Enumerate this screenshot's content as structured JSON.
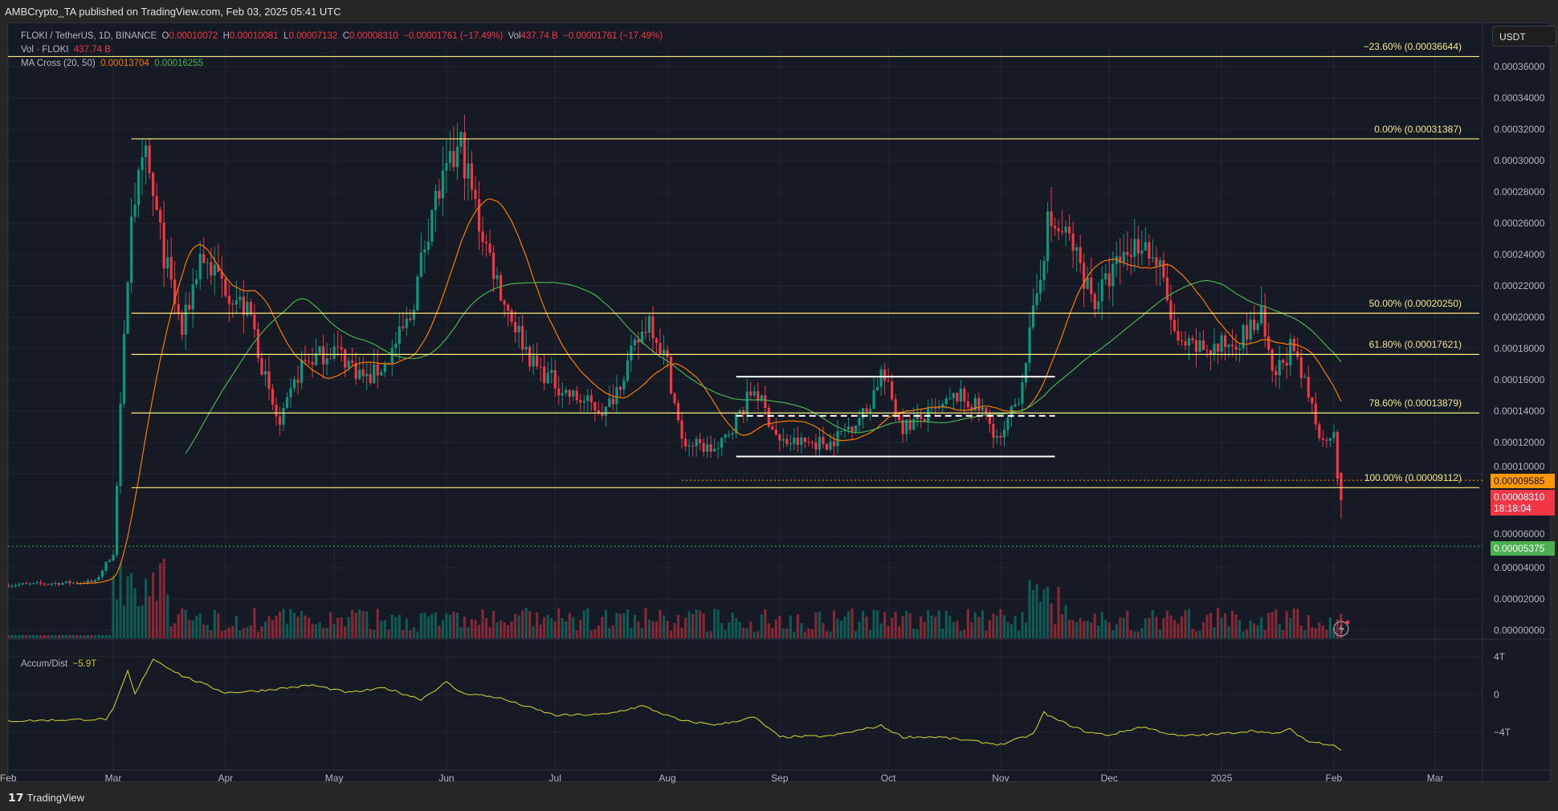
{
  "topbar": {
    "text": "AMBCrypto_TA published on TradingView.com, Feb 03, 2025 05:41 UTC"
  },
  "legend": {
    "symbol": "FLOKI / TetherUS, 1D, BINANCE",
    "o_label": "O",
    "o": "0.00010072",
    "h_label": "H",
    "h": "0.00010081",
    "l_label": "L",
    "l": "0.00007132",
    "c_label": "C",
    "c": "0.00008310",
    "change": "−0.00001761 (−17.49%)",
    "vol_label": "Vol",
    "vol": "437.74 B",
    "vol_change": "−0.00001761 (−17.49%)",
    "vol_study": "Vol · FLOKI",
    "vol_study_value": "437.74 B",
    "ma_study": "MA Cross (20, 50)",
    "ma20": "0.00013704",
    "ma50": "0.00016255",
    "ad_study": "Accum/Dist",
    "ad_value": "−5.9T"
  },
  "currency": "USDT",
  "fib_levels": [
    {
      "label": "−23.60% (0.00036644)",
      "price": 0.00036644
    },
    {
      "label": "0.00% (0.00031387)",
      "price": 0.00031387
    },
    {
      "label": "50.00% (0.00020250)",
      "price": 0.0002025
    },
    {
      "label": "61.80% (0.00017621)",
      "price": 0.00017621
    },
    {
      "label": "78.60% (0.00013879)",
      "price": 0.00013879
    },
    {
      "label": "100.00% (0.00009112)",
      "price": 9.112e-05
    }
  ],
  "price_axis": [
    "0.00036000",
    "0.00034000",
    "0.00032000",
    "0.00030000",
    "0.00028000",
    "0.00026000",
    "0.00024000",
    "0.00022000",
    "0.00020000",
    "0.00018000",
    "0.00016000",
    "0.00014000",
    "0.00012000",
    "0.00010000",
    "0.00006000",
    "0.00004000",
    "0.00002000",
    "0.00000000"
  ],
  "price_tags": {
    "orange": "0.00009585",
    "last": "0.00008310",
    "countdown": "18:18:04",
    "green": "0.00005375"
  },
  "ad_axis": [
    "4T",
    "0",
    "−4T"
  ],
  "time_axis": [
    {
      "label": "Feb",
      "date": "2024-02-01"
    },
    {
      "label": "Mar",
      "date": "2024-03-01"
    },
    {
      "label": "Apr",
      "date": "2024-04-01"
    },
    {
      "label": "May",
      "date": "2024-05-01"
    },
    {
      "label": "Jun",
      "date": "2024-06-01"
    },
    {
      "label": "Jul",
      "date": "2024-07-01"
    },
    {
      "label": "Aug",
      "date": "2024-08-01"
    },
    {
      "label": "Sep",
      "date": "2024-09-01"
    },
    {
      "label": "Oct",
      "date": "2024-10-01"
    },
    {
      "label": "Nov",
      "date": "2024-11-01"
    },
    {
      "label": "Dec",
      "date": "2024-12-01"
    },
    {
      "label": "2025",
      "date": "2025-01-01"
    },
    {
      "label": "Feb",
      "date": "2025-02-01"
    },
    {
      "label": "Mar",
      "date": "2025-03-01"
    }
  ],
  "footer": {
    "brand": "TradingView"
  },
  "colors": {
    "up": "#089981",
    "down": "#f23645",
    "ma20": "#f57c00",
    "ma50": "#4caf50",
    "fib": "#ffeb80",
    "ad": "#c8c832"
  },
  "chart_data": {
    "type": "candlestick",
    "title": "FLOKI / TetherUS, 1D, BINANCE",
    "close_keypoints": [
      [
        "2024-02-01",
        2.9e-05
      ],
      [
        "2024-02-25",
        3.1e-05
      ],
      [
        "2024-03-01",
        5e-05
      ],
      [
        "2024-03-03",
        0.00014
      ],
      [
        "2024-03-06",
        0.00027
      ],
      [
        "2024-03-10",
        0.0003
      ],
      [
        "2024-03-15",
        0.00024
      ],
      [
        "2024-03-20",
        0.00019
      ],
      [
        "2024-03-25",
        0.00024
      ],
      [
        "2024-04-01",
        0.00022
      ],
      [
        "2024-04-08",
        0.0002
      ],
      [
        "2024-04-13",
        0.00015
      ],
      [
        "2024-04-16",
        0.00013
      ],
      [
        "2024-04-22",
        0.00017
      ],
      [
        "2024-05-01",
        0.00018
      ],
      [
        "2024-05-10",
        0.00016
      ],
      [
        "2024-05-15",
        0.00017
      ],
      [
        "2024-05-22",
        0.0002
      ],
      [
        "2024-05-28",
        0.00027
      ],
      [
        "2024-06-05",
        0.00031
      ],
      [
        "2024-06-10",
        0.00026
      ],
      [
        "2024-06-17",
        0.00021
      ],
      [
        "2024-06-25",
        0.00017
      ],
      [
        "2024-07-05",
        0.00015
      ],
      [
        "2024-07-15",
        0.00014
      ],
      [
        "2024-07-27",
        0.0002
      ],
      [
        "2024-08-01",
        0.00017
      ],
      [
        "2024-08-05",
        0.00012
      ],
      [
        "2024-08-15",
        0.000115
      ],
      [
        "2024-08-25",
        0.000155
      ],
      [
        "2024-09-01",
        0.00012
      ],
      [
        "2024-09-15",
        0.00012
      ],
      [
        "2024-09-25",
        0.00014
      ],
      [
        "2024-09-29",
        0.000165
      ],
      [
        "2024-10-05",
        0.00013
      ],
      [
        "2024-10-15",
        0.00014
      ],
      [
        "2024-10-20",
        0.00015
      ],
      [
        "2024-10-27",
        0.00014
      ],
      [
        "2024-11-01",
        0.00012
      ],
      [
        "2024-11-06",
        0.00015
      ],
      [
        "2024-11-10",
        0.0002
      ],
      [
        "2024-11-14",
        0.00026
      ],
      [
        "2024-11-20",
        0.00025
      ],
      [
        "2024-11-27",
        0.00021
      ],
      [
        "2024-12-05",
        0.00024
      ],
      [
        "2024-12-10",
        0.00025
      ],
      [
        "2024-12-15",
        0.00023
      ],
      [
        "2024-12-20",
        0.00018
      ],
      [
        "2024-12-31",
        0.00018
      ],
      [
        "2025-01-08",
        0.00019
      ],
      [
        "2025-01-12",
        0.0002
      ],
      [
        "2025-01-15",
        0.00016
      ],
      [
        "2025-01-20",
        0.00018
      ],
      [
        "2025-01-25",
        0.00015
      ],
      [
        "2025-01-29",
        0.00012
      ],
      [
        "2025-02-01",
        0.00013
      ],
      [
        "2025-02-02",
        0.0001
      ],
      [
        "2025-02-03",
        8.31e-05
      ]
    ],
    "ad_keypoints_T": [
      [
        "2024-02-01",
        -2.8
      ],
      [
        "2024-02-28",
        -2.6
      ],
      [
        "2024-03-01",
        -1.6
      ],
      [
        "2024-03-05",
        2.5
      ],
      [
        "2024-03-07",
        0
      ],
      [
        "2024-03-12",
        3.8
      ],
      [
        "2024-03-20",
        2
      ],
      [
        "2024-04-01",
        0.2
      ],
      [
        "2024-04-10",
        0.4
      ],
      [
        "2024-04-25",
        1
      ],
      [
        "2024-05-05",
        0.2
      ],
      [
        "2024-05-15",
        0.7
      ],
      [
        "2024-05-25",
        -0.5
      ],
      [
        "2024-06-01",
        1.3
      ],
      [
        "2024-06-05",
        0.2
      ],
      [
        "2024-06-15",
        -0.3
      ],
      [
        "2024-07-01",
        -2.2
      ],
      [
        "2024-07-15",
        -2.1
      ],
      [
        "2024-07-25",
        -1.2
      ],
      [
        "2024-08-05",
        -2.8
      ],
      [
        "2024-08-15",
        -3.2
      ],
      [
        "2024-08-25",
        -2.4
      ],
      [
        "2024-09-01",
        -4.5
      ],
      [
        "2024-09-15",
        -4.4
      ],
      [
        "2024-09-29",
        -3.3
      ],
      [
        "2024-10-05",
        -4.5
      ],
      [
        "2024-10-15",
        -4.5
      ],
      [
        "2024-11-01",
        -5.3
      ],
      [
        "2024-11-10",
        -4.2
      ],
      [
        "2024-11-13",
        -1.9
      ],
      [
        "2024-11-16",
        -2.6
      ],
      [
        "2024-11-25",
        -4.0
      ],
      [
        "2024-12-01",
        -4.3
      ],
      [
        "2024-12-10",
        -3.4
      ],
      [
        "2024-12-20",
        -4.4
      ],
      [
        "2024-12-31",
        -4.2
      ],
      [
        "2025-01-10",
        -3.8
      ],
      [
        "2025-01-15",
        -4.2
      ],
      [
        "2025-01-20",
        -3.7
      ],
      [
        "2025-01-25",
        -5.0
      ],
      [
        "2025-02-01",
        -5.3
      ],
      [
        "2025-02-03",
        -5.9
      ]
    ],
    "range_box": {
      "start": "2024-08-20",
      "end": "2024-11-16",
      "top": 0.000162,
      "mid": 0.000137,
      "bottom": 0.000111
    },
    "last_candle": {
      "open": 0.00010072,
      "high": 0.00010081,
      "low": 7.132e-05,
      "close": 8.31e-05
    },
    "ylim": [
      0,
      0.00037
    ],
    "ad_ylim_T": [
      -7,
      5
    ]
  }
}
